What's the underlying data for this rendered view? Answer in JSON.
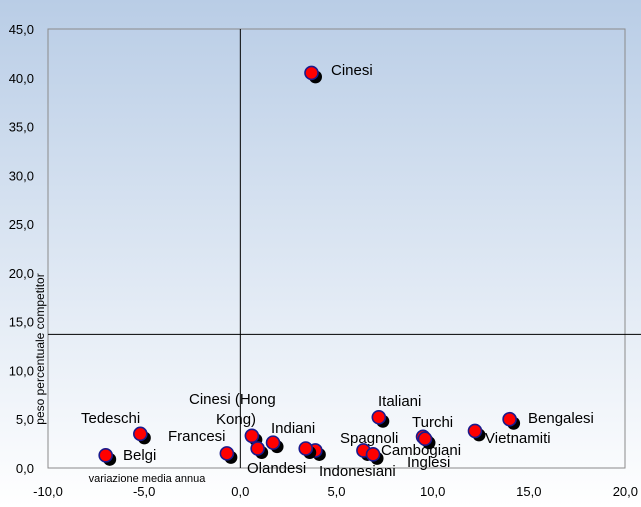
{
  "chart_data": {
    "type": "scatter",
    "xlabel": "variazione media annua",
    "ylabel": "peso percentuale competitor",
    "xlim": [
      -10,
      20
    ],
    "ylim": [
      0,
      45
    ],
    "x_ticks": [
      "-10,0",
      "-5,0",
      "0,0",
      "5,0",
      "10,0",
      "15,0",
      "20,0"
    ],
    "y_ticks": [
      "0,0",
      "5,0",
      "10,0",
      "15,0",
      "20,0",
      "25,0",
      "30,0",
      "35,0",
      "40,0",
      "45,0"
    ],
    "reference_lines": {
      "x": 0,
      "y": 13.7
    },
    "grid": false,
    "marker_color": "#ff0000",
    "marker_edge_color": "#1a1a8c",
    "shadow_color": "#000000",
    "background_gradient": [
      "#b9cde6",
      "#ffffff"
    ],
    "points": [
      {
        "label": "Cinesi",
        "x": 3.7,
        "y": 40.5
      },
      {
        "label": "Tedeschi",
        "x": -5.2,
        "y": 3.5
      },
      {
        "label": "Belgi",
        "x": -7.0,
        "y": 1.3
      },
      {
        "label": "Francesi",
        "x": -0.7,
        "y": 1.5
      },
      {
        "label": "Cinesi (Hong Kong)",
        "x": 0.6,
        "y": 3.3
      },
      {
        "label": "Olandesi",
        "x": 0.9,
        "y": 2.0
      },
      {
        "label": "Indiani",
        "x": 1.7,
        "y": 2.6
      },
      {
        "label": "Indonesiani",
        "x": 3.9,
        "y": 1.8
      },
      {
        "label": "",
        "x": 3.4,
        "y": 2.0
      },
      {
        "label": "Italiani",
        "x": 7.2,
        "y": 5.2
      },
      {
        "label": "Spagnoli",
        "x": 6.4,
        "y": 1.8
      },
      {
        "label": "Cambogiani",
        "x": 6.9,
        "y": 1.4
      },
      {
        "label": "Turchi",
        "x": 9.5,
        "y": 3.2
      },
      {
        "label": "Inglesi",
        "x": 9.6,
        "y": 3.0
      },
      {
        "label": "Vietnamiti",
        "x": 12.2,
        "y": 3.8
      },
      {
        "label": "Bengalesi",
        "x": 14.0,
        "y": 5.0
      }
    ]
  }
}
